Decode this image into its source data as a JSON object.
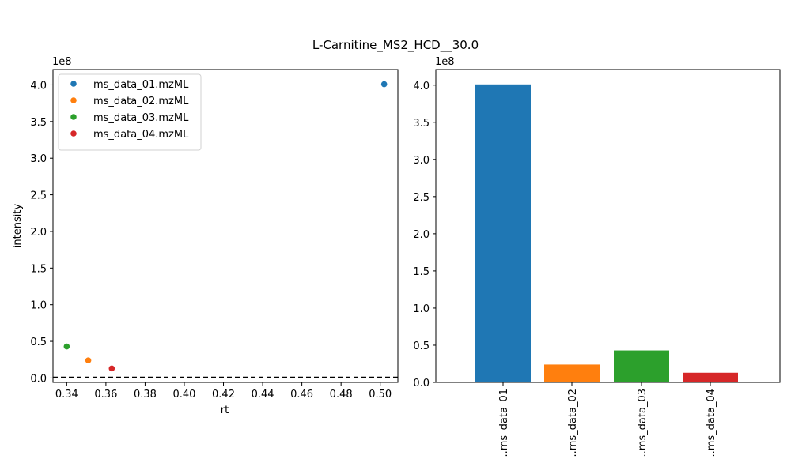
{
  "figure": {
    "title": "L-Carnitine_MS2_HCD__30.0"
  },
  "chart_data": [
    {
      "type": "scatter",
      "xlabel": "rt",
      "ylabel": "intensity",
      "y_offset_label": "1e8",
      "xlim": [
        0.333,
        0.509
      ],
      "ylim": [
        -6000000,
        421000000
      ],
      "x_ticks": [
        "0.34",
        "0.36",
        "0.38",
        "0.40",
        "0.42",
        "0.44",
        "0.46",
        "0.48",
        "0.50"
      ],
      "y_ticks": [
        "0.0",
        "0.5",
        "1.0",
        "1.5",
        "2.0",
        "2.5",
        "3.0",
        "3.5",
        "4.0"
      ],
      "baseline": {
        "y": 1000000,
        "style": "dashed",
        "color": "#000000"
      },
      "legend_position": "upper-left",
      "series": [
        {
          "name": "ms_data_01.mzML",
          "color": "#1f77b4",
          "x": 0.502,
          "y": 401000000
        },
        {
          "name": "ms_data_02.mzML",
          "color": "#ff7f0e",
          "x": 0.351,
          "y": 24000000
        },
        {
          "name": "ms_data_03.mzML",
          "color": "#2ca02c",
          "x": 0.34,
          "y": 43000000
        },
        {
          "name": "ms_data_04.mzML",
          "color": "#d62728",
          "x": 0.363,
          "y": 13000000
        }
      ]
    },
    {
      "type": "bar",
      "y_offset_label": "1e8",
      "ylim": [
        0,
        421000000
      ],
      "y_ticks": [
        "0.0",
        "0.5",
        "1.0",
        "1.5",
        "2.0",
        "2.5",
        "3.0",
        "3.5",
        "4.0"
      ],
      "categories": [
        "..ms_data_01",
        "..ms_data_02",
        "..ms_data_03",
        "..ms_data_04"
      ],
      "values": [
        401000000,
        24000000,
        43000000,
        13000000
      ],
      "colors": [
        "#1f77b4",
        "#ff7f0e",
        "#2ca02c",
        "#d62728"
      ]
    }
  ]
}
